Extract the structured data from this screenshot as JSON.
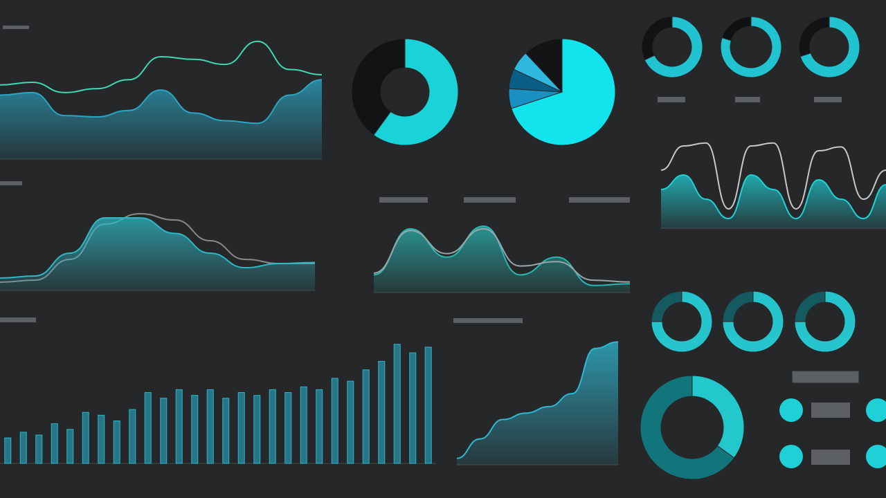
{
  "chart_data": [
    {
      "type": "line",
      "ylim": [
        0,
        100
      ],
      "series": [
        {
          "color": "#3fd9b4",
          "values": [
            58,
            60,
            52,
            55,
            62,
            80,
            78,
            74,
            92,
            70,
            66
          ]
        },
        {
          "color": "#2aa6c4",
          "area": true,
          "values": [
            50,
            52,
            34,
            33,
            38,
            54,
            36,
            30,
            28,
            50,
            62
          ]
        }
      ]
    },
    {
      "type": "line",
      "ylim": [
        0,
        100
      ],
      "series": [
        {
          "color": "#888a8c",
          "values": [
            8,
            10,
            30,
            64,
            74,
            68,
            48,
            30,
            26,
            26
          ]
        },
        {
          "color": "#2fb8c6",
          "area": true,
          "values": [
            12,
            14,
            36,
            70,
            70,
            55,
            36,
            22,
            26,
            27
          ]
        }
      ]
    },
    {
      "type": "bar",
      "ylim": [
        0,
        100
      ],
      "color": "#29b6d1",
      "values": [
        18,
        22,
        20,
        28,
        24,
        36,
        34,
        30,
        38,
        50,
        46,
        52,
        48,
        52,
        46,
        50,
        48,
        52,
        50,
        54,
        52,
        60,
        58,
        66,
        72,
        84,
        78,
        82
      ]
    },
    {
      "type": "donut",
      "values": [
        60,
        40
      ],
      "colors": [
        "#19d3d8",
        "#121314"
      ]
    },
    {
      "type": "pie",
      "values": [
        70,
        6,
        6,
        6,
        12
      ],
      "colors": [
        "#12e4ee",
        "#1a8fc2",
        "#0b5f86",
        "#2fb7df",
        "#131415"
      ]
    },
    {
      "type": "line",
      "ylim": [
        0,
        100
      ],
      "series": [
        {
          "color": "#2ab7b4",
          "area": true,
          "values": [
            20,
            72,
            40,
            75,
            20,
            40,
            8,
            10
          ]
        },
        {
          "color": "#9aa6a8",
          "values": [
            22,
            70,
            44,
            72,
            30,
            35,
            14,
            12
          ]
        }
      ]
    },
    {
      "type": "line",
      "ylim": [
        0,
        100
      ],
      "series": [
        {
          "color": "#2fb9d4",
          "area": true,
          "values": [
            5,
            20,
            35,
            40,
            45,
            55,
            90,
            95
          ]
        }
      ]
    },
    {
      "type": "donut",
      "values": [
        68,
        32
      ],
      "colors": [
        "#22c3d0",
        "#121314"
      ]
    },
    {
      "type": "donut",
      "values": [
        80,
        20
      ],
      "colors": [
        "#22c3d0",
        "#101112"
      ]
    },
    {
      "type": "donut",
      "values": [
        70,
        30
      ],
      "colors": [
        "#22c3d0",
        "#121314"
      ]
    },
    {
      "type": "line",
      "ylim": [
        0,
        100
      ],
      "series": [
        {
          "color": "#c8c8c8",
          "values": [
            60,
            85,
            88,
            20,
            85,
            88,
            20,
            80,
            84,
            30,
            60
          ]
        },
        {
          "color": "#1fd2d8",
          "area": true,
          "values": [
            40,
            55,
            30,
            10,
            55,
            40,
            10,
            50,
            30,
            10,
            45
          ]
        }
      ]
    },
    {
      "type": "donut",
      "values": [
        75,
        25
      ],
      "colors": [
        "#26c4cc",
        "#155a60"
      ]
    },
    {
      "type": "donut",
      "values": [
        75,
        25
      ],
      "colors": [
        "#26c4cc",
        "#155a60"
      ]
    },
    {
      "type": "donut",
      "values": [
        75,
        25
      ],
      "colors": [
        "#26c4cc",
        "#155a60"
      ]
    },
    {
      "type": "donut",
      "values": [
        35,
        65
      ],
      "colors": [
        "#22c8cc",
        "#13757c"
      ]
    }
  ]
}
